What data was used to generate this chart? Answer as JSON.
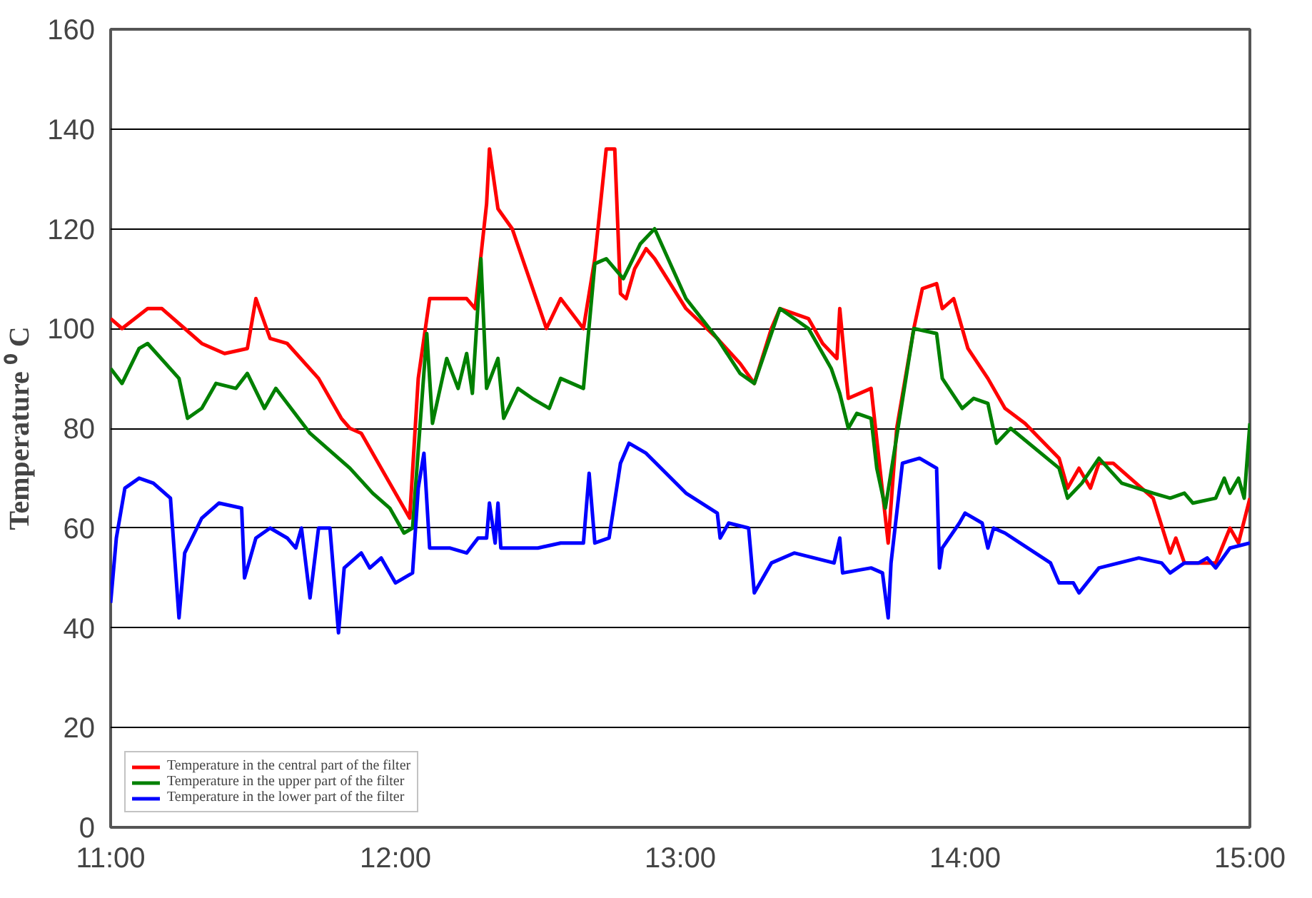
{
  "chart_data": {
    "type": "line",
    "ylabel": "Temperature ⁰ C",
    "xlim": [
      11,
      15
    ],
    "xticks": [
      {
        "value": 11,
        "label": "11:00"
      },
      {
        "value": 12,
        "label": "12:00"
      },
      {
        "value": 13,
        "label": "13:00"
      },
      {
        "value": 14,
        "label": "14:00"
      },
      {
        "value": 15,
        "label": "15:00"
      }
    ],
    "ylim": [
      0,
      160
    ],
    "yticks": [
      0,
      20,
      40,
      60,
      80,
      100,
      120,
      140,
      160
    ],
    "grid": "y",
    "legend": "bottom left",
    "line_style": "solid",
    "series": [
      {
        "name": "Temperature in the central part of the filter",
        "color": "#ff0000",
        "x": [
          11.0,
          11.04,
          11.13,
          11.18,
          11.26,
          11.32,
          11.4,
          11.48,
          11.51,
          11.56,
          11.62,
          11.73,
          11.81,
          11.84,
          11.88,
          11.95,
          12.03,
          12.05,
          12.08,
          12.12,
          12.25,
          12.28,
          12.32,
          12.33,
          12.36,
          12.41,
          12.53,
          12.58,
          12.66,
          12.7,
          12.74,
          12.77,
          12.79,
          12.81,
          12.84,
          12.88,
          12.91,
          13.02,
          13.13,
          13.21,
          13.26,
          13.32,
          13.35,
          13.45,
          13.5,
          13.55,
          13.56,
          13.59,
          13.67,
          13.73,
          13.76,
          13.82,
          13.85,
          13.9,
          13.92,
          13.96,
          14.01,
          14.08,
          14.14,
          14.21,
          14.33,
          14.36,
          14.4,
          14.44,
          14.47,
          14.52,
          14.66,
          14.72,
          14.74,
          14.77,
          14.88,
          14.93,
          14.96,
          15.0
        ],
        "values": [
          102,
          100,
          104,
          104,
          100,
          97,
          95,
          96,
          106,
          98,
          97,
          90,
          82,
          80,
          79,
          72,
          64,
          62,
          90,
          106,
          106,
          104,
          125,
          136,
          124,
          120,
          100,
          106,
          100,
          114,
          136,
          136,
          107,
          106,
          112,
          116,
          114,
          104,
          98,
          93,
          89,
          100,
          104,
          102,
          97,
          94,
          104,
          86,
          88,
          57,
          80,
          100,
          108,
          109,
          104,
          106,
          96,
          90,
          84,
          81,
          74,
          68,
          72,
          68,
          73,
          73,
          66,
          55,
          58,
          53,
          53,
          60,
          57,
          66
        ]
      },
      {
        "name": "Temperature in the upper part of the filter",
        "color": "#008000",
        "x": [
          11.0,
          11.04,
          11.1,
          11.13,
          11.24,
          11.27,
          11.32,
          11.37,
          11.44,
          11.48,
          11.54,
          11.58,
          11.62,
          11.7,
          11.78,
          11.84,
          11.92,
          11.98,
          12.03,
          12.06,
          12.11,
          12.13,
          12.18,
          12.22,
          12.25,
          12.27,
          12.3,
          12.32,
          12.36,
          12.38,
          12.43,
          12.48,
          12.54,
          12.58,
          12.66,
          12.7,
          12.74,
          12.8,
          12.86,
          12.91,
          13.02,
          13.13,
          13.21,
          13.26,
          13.35,
          13.45,
          13.53,
          13.56,
          13.59,
          13.62,
          13.67,
          13.69,
          13.72,
          13.82,
          13.9,
          13.92,
          13.99,
          14.03,
          14.08,
          14.11,
          14.16,
          14.33,
          14.36,
          14.41,
          14.47,
          14.55,
          14.66,
          14.72,
          14.77,
          14.8,
          14.88,
          14.91,
          14.93,
          14.96,
          14.98,
          15.0
        ],
        "values": [
          92,
          89,
          96,
          97,
          90,
          82,
          84,
          89,
          88,
          91,
          84,
          88,
          85,
          79,
          75,
          72,
          67,
          64,
          59,
          60,
          99,
          81,
          94,
          88,
          95,
          87,
          114,
          88,
          94,
          82,
          88,
          86,
          84,
          90,
          88,
          113,
          114,
          110,
          117,
          120,
          106,
          98,
          91,
          89,
          104,
          100,
          92,
          87,
          80,
          83,
          82,
          72,
          64,
          100,
          99,
          90,
          84,
          86,
          85,
          77,
          80,
          72,
          66,
          69,
          74,
          69,
          67,
          66,
          67,
          65,
          66,
          70,
          67,
          70,
          66,
          81
        ]
      },
      {
        "name": "Temperature in the lower part of the filter",
        "color": "#0000ff",
        "x": [
          11.0,
          11.02,
          11.05,
          11.1,
          11.15,
          11.21,
          11.24,
          11.26,
          11.32,
          11.38,
          11.46,
          11.47,
          11.51,
          11.56,
          11.62,
          11.65,
          11.67,
          11.7,
          11.73,
          11.77,
          11.8,
          11.82,
          11.88,
          11.91,
          11.95,
          12.0,
          12.03,
          12.06,
          12.08,
          12.1,
          12.12,
          12.19,
          12.25,
          12.29,
          12.32,
          12.33,
          12.35,
          12.36,
          12.37,
          12.5,
          12.58,
          12.66,
          12.68,
          12.7,
          12.75,
          12.79,
          12.82,
          12.88,
          13.02,
          13.13,
          13.14,
          13.17,
          13.24,
          13.26,
          13.32,
          13.4,
          13.54,
          13.56,
          13.57,
          13.67,
          13.71,
          13.73,
          13.74,
          13.78,
          13.84,
          13.9,
          13.91,
          13.92,
          13.98,
          14.0,
          14.06,
          14.08,
          14.1,
          14.14,
          14.3,
          14.33,
          14.38,
          14.4,
          14.47,
          14.61,
          14.69,
          14.72,
          14.77,
          14.82,
          14.85,
          14.88,
          14.93,
          15.0
        ],
        "values": [
          45,
          58,
          68,
          70,
          69,
          66,
          42,
          55,
          62,
          65,
          64,
          50,
          58,
          60,
          58,
          56,
          60,
          46,
          60,
          60,
          39,
          52,
          55,
          52,
          54,
          49,
          50,
          51,
          68,
          75,
          56,
          56,
          55,
          58,
          58,
          65,
          57,
          65,
          56,
          56,
          57,
          57,
          71,
          57,
          58,
          73,
          77,
          75,
          67,
          63,
          58,
          61,
          60,
          47,
          53,
          55,
          53,
          58,
          51,
          52,
          51,
          42,
          53,
          73,
          74,
          72,
          52,
          56,
          61,
          63,
          61,
          56,
          60,
          59,
          53,
          49,
          49,
          47,
          52,
          54,
          53,
          51,
          53,
          53,
          54,
          52,
          56,
          57
        ]
      }
    ]
  }
}
